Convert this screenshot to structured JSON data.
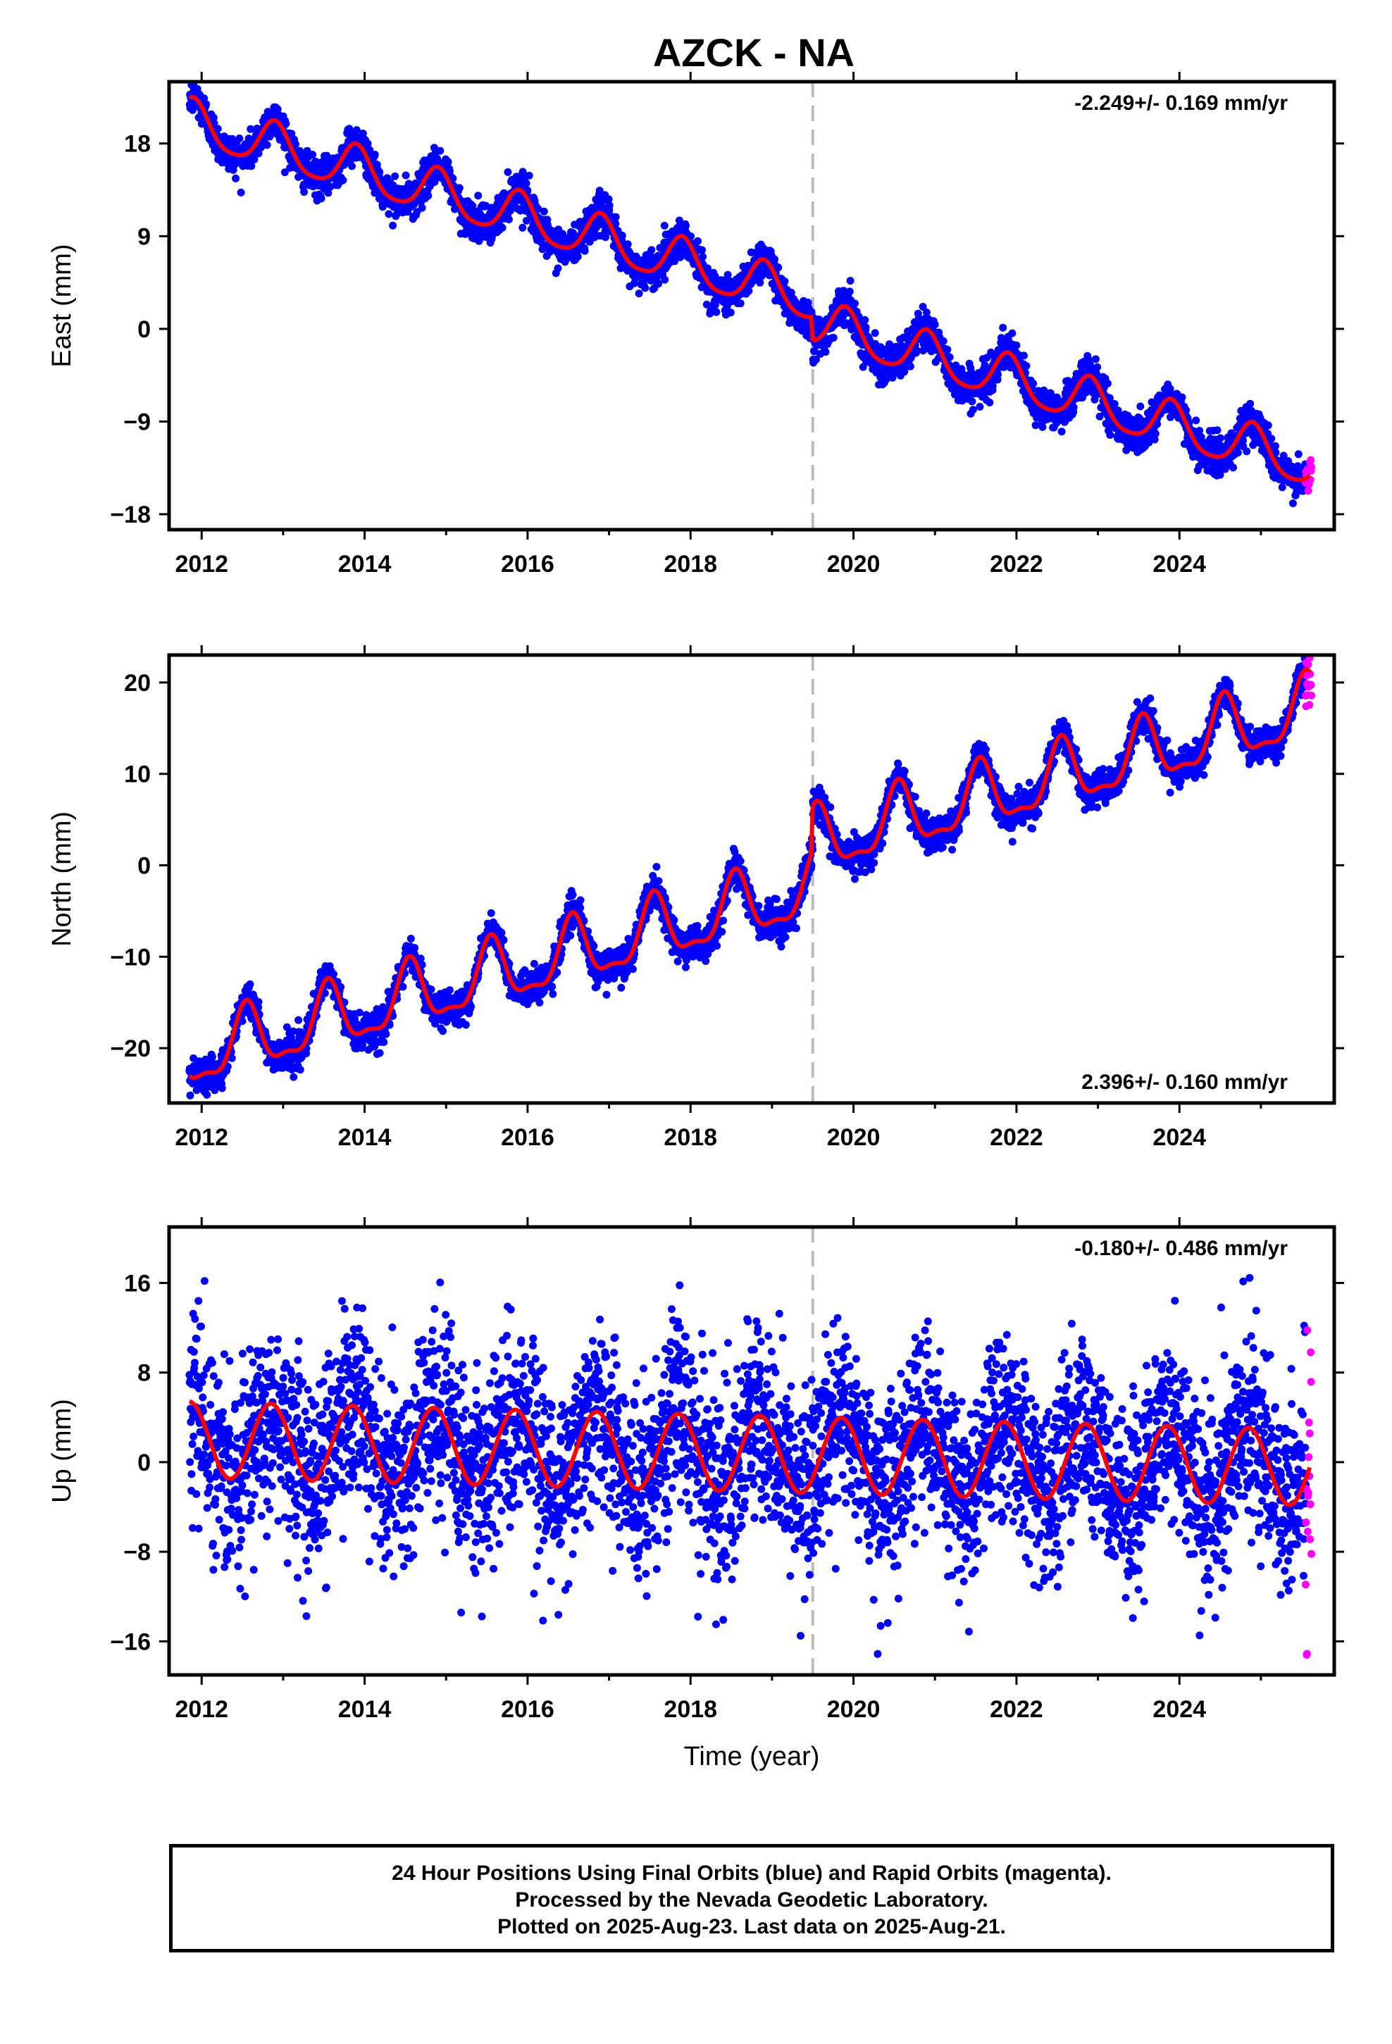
{
  "title": "AZCK - NA",
  "xlabel": "Time (year)",
  "footer": {
    "line1": "24 Hour Positions Using Final Orbits (blue) and Rapid Orbits (magenta).",
    "line2": "Processed by the Nevada Geodetic Laboratory.",
    "line3": "Plotted on 2025-Aug-23. Last data on 2025-Aug-21."
  },
  "colors": {
    "final_orbits": "#0000ff",
    "rapid_orbits": "#ff00ff",
    "model_fit": "#ff0000",
    "event_line": "#bbbbbb"
  },
  "chart_data": [
    {
      "type": "scatter",
      "panel": "east",
      "ylabel": "East (mm)",
      "rate_label": "-2.249+/- 0.169 mm/yr",
      "rate_position": "top-right",
      "xlim": [
        2011.6,
        2025.9
      ],
      "ylim": [
        -19.5,
        24
      ],
      "xticks": [
        2012,
        2014,
        2016,
        2018,
        2020,
        2022,
        2024
      ],
      "yticks": [
        18,
        9,
        0,
        -9,
        -18
      ],
      "ytick_labels": [
        "18",
        "9",
        "0",
        "−9",
        "−18"
      ],
      "event_line_x": 2019.5,
      "model": {
        "offset": 20.0,
        "rate": -2.249,
        "t0": 2011.85,
        "annual_amp": 2.2,
        "annual_phase_year": 2011.9,
        "semiannual_amp": 0.4,
        "step_at": 2019.5,
        "step_before": 0,
        "step_after": -2.3
      },
      "series": [
        {
          "name": "Final Orbits",
          "color": "#0000ff",
          "start": 2011.85,
          "end": 2025.55,
          "noise": 0.9
        },
        {
          "name": "Rapid Orbits",
          "color": "#ff00ff",
          "start": 2025.55,
          "end": 2025.62,
          "noise": 1.2
        }
      ]
    },
    {
      "type": "scatter",
      "panel": "north",
      "ylabel": "North (mm)",
      "rate_label": "2.396+/- 0.160 mm/yr",
      "rate_position": "bottom-right",
      "xlim": [
        2011.6,
        2025.9
      ],
      "ylim": [
        -26,
        23
      ],
      "xticks": [
        2012,
        2014,
        2016,
        2018,
        2020,
        2022,
        2024
      ],
      "yticks": [
        20,
        10,
        0,
        -10,
        -20
      ],
      "ytick_labels": [
        "20",
        "10",
        "0",
        "−10",
        "−20"
      ],
      "event_line_x": 2019.5,
      "model": {
        "offset": -21.0,
        "rate": 2.396,
        "t0": 2011.85,
        "annual_amp": 3.4,
        "annual_phase_year": 2012.55,
        "semiannual_amp": 1.2,
        "step_at": 2019.5,
        "step_before": 0,
        "step_after": 5.0
      },
      "series": [
        {
          "name": "Final Orbits",
          "color": "#0000ff",
          "start": 2011.85,
          "end": 2025.55,
          "noise": 0.9
        },
        {
          "name": "Rapid Orbits",
          "color": "#ff00ff",
          "start": 2025.55,
          "end": 2025.62,
          "noise": 2.0
        }
      ]
    },
    {
      "type": "scatter",
      "panel": "up",
      "ylabel": "Up (mm)",
      "rate_label": "-0.180+/- 0.486 mm/yr",
      "rate_position": "top-right",
      "xlim": [
        2011.6,
        2025.9
      ],
      "ylim": [
        -19,
        21
      ],
      "xticks": [
        2012,
        2014,
        2016,
        2018,
        2020,
        2022,
        2024
      ],
      "yticks": [
        16,
        8,
        0,
        -8,
        -16
      ],
      "ytick_labels": [
        "16",
        "8",
        "0",
        "−8",
        "−16"
      ],
      "event_line_x": 2019.5,
      "model": {
        "offset": 2.0,
        "rate": -0.18,
        "t0": 2011.85,
        "annual_amp": 3.4,
        "annual_phase_year": 2011.85,
        "semiannual_amp": 0.0,
        "step_at": 2019.5,
        "step_before": 0,
        "step_after": 0
      },
      "series": [
        {
          "name": "Final Orbits",
          "color": "#0000ff",
          "start": 2011.85,
          "end": 2025.55,
          "noise": 4.2
        },
        {
          "name": "Rapid Orbits",
          "color": "#ff00ff",
          "start": 2025.55,
          "end": 2025.62,
          "noise": 9.0
        }
      ]
    }
  ]
}
